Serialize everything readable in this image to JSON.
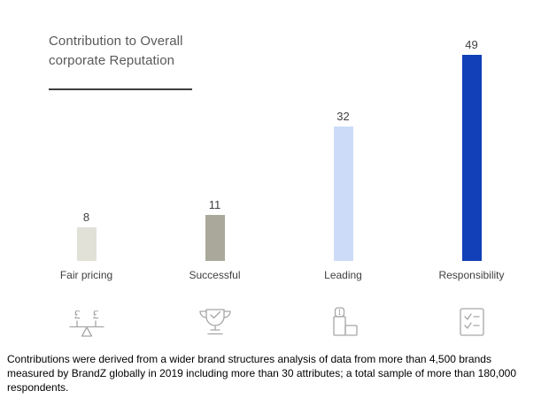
{
  "chart_data": {
    "type": "bar",
    "title": "Contribution to Overall corporate Reputation",
    "categories": [
      "Fair pricing",
      "Successful",
      "Leading",
      "Responsibility"
    ],
    "values": [
      8,
      11,
      32,
      49
    ],
    "bar_colors": [
      "#e2e1d8",
      "#a9a89a",
      "#ccdcf8",
      "#1140b8"
    ],
    "ylim": [
      0,
      52
    ],
    "grid": false,
    "legend": "none",
    "value_labels": true,
    "xlabel": "",
    "ylabel": ""
  },
  "icons": [
    {
      "name": "balance-scale-pounds-icon",
      "meaning": "fair pricing"
    },
    {
      "name": "trophy-check-icon",
      "meaning": "successful"
    },
    {
      "name": "podium-first-place-icon",
      "meaning": "leading"
    },
    {
      "name": "checklist-icon",
      "meaning": "responsibility"
    }
  ],
  "footnote": "Contributions were derived from a wider brand structures analysis of data from more than 4,500 brands measured by BrandZ globally in 2019 including more than 30 attributes; a total sample of more than 180,000 respondents."
}
